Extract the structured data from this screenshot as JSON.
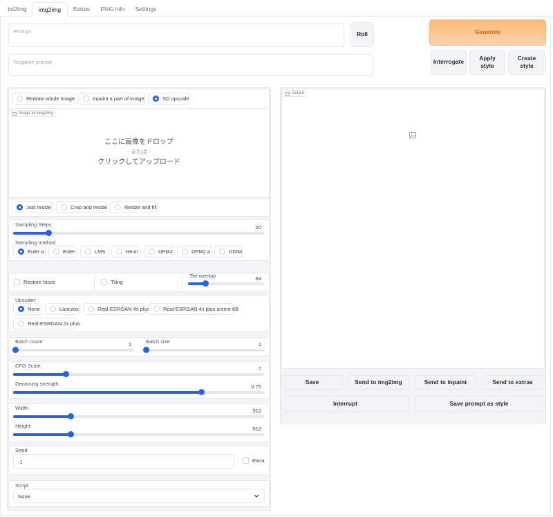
{
  "tabs": [
    "txt2img",
    "img2img",
    "Extras",
    "PNG Info",
    "Settings"
  ],
  "prompt": {
    "placeholder": "Prompt",
    "negative_placeholder": "Negative prompt"
  },
  "buttons": {
    "roll": "Roll",
    "generate": "Generate",
    "interrogate": "Interrogate",
    "apply_style": "Apply style",
    "create_style": "Create style"
  },
  "mode": {
    "options": [
      "Redraw whole image",
      "Inpaint a part of image",
      "SD upscale"
    ],
    "selected": "SD upscale"
  },
  "image_input": {
    "label": "Image for img2img",
    "drop_line1": "ここに画像をドロップ",
    "drop_line2": "- または -",
    "drop_line3": "クリックしてアップロード"
  },
  "resize": {
    "options": [
      "Just resize",
      "Crop and resize",
      "Resize and fill"
    ],
    "selected": "Just resize"
  },
  "sampling_steps": {
    "label": "Sampling Steps",
    "value": "20",
    "fraction": 0.14
  },
  "sampling_method": {
    "label": "Sampling method",
    "options": [
      "Euler a",
      "Euler",
      "LMS",
      "Heun",
      "DPM2",
      "DPM2 a",
      "DDIM"
    ],
    "selected": "Euler a"
  },
  "restore_faces": {
    "label": "Restore faces",
    "checked": false
  },
  "tiling": {
    "label": "Tiling",
    "checked": false
  },
  "tile_overlap": {
    "label": "Tile overlap",
    "value": "64",
    "fraction": 0.23
  },
  "upscaler": {
    "label": "Upscaler",
    "options": [
      "None",
      "Lanczos",
      "Real-ESRGAN 4x plus",
      "Real-ESRGAN 4x plus anime 6B",
      "Real-ESRGAN 2x plus"
    ],
    "selected": "None"
  },
  "batch_count": {
    "label": "Batch count",
    "value": "1",
    "fraction": 0.0
  },
  "batch_size": {
    "label": "Batch size",
    "value": "1",
    "fraction": 0.0
  },
  "cfg_scale": {
    "label": "CFG Scale",
    "value": "7",
    "fraction": 0.21
  },
  "denoising": {
    "label": "Denoising strength",
    "value": "0.75",
    "fraction": 0.75
  },
  "width": {
    "label": "Width",
    "value": "512",
    "fraction": 0.23
  },
  "height": {
    "label": "Height",
    "value": "512",
    "fraction": 0.23
  },
  "seed": {
    "label": "Seed",
    "value": "-1",
    "extra_label": "Extra"
  },
  "script": {
    "label": "Script",
    "value": "None"
  },
  "output": {
    "label": "Output",
    "buttons": [
      "Save",
      "Send to img2img",
      "Send to inpaint",
      "Send to extras"
    ],
    "interrupt": "Interrupt",
    "save_style": "Save prompt as style"
  },
  "icons": {
    "image_placeholder": "image-icon",
    "dropdown": "chevron-down-icon"
  },
  "colors": {
    "accent": "#2563eb",
    "generate_bg": "#fdba74",
    "generate_text": "#ea580c"
  }
}
